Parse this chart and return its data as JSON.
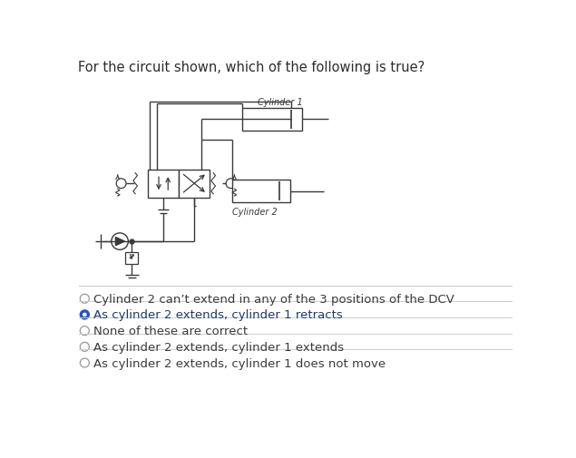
{
  "title": "For the circuit shown, which of the following is true?",
  "title_color": "#2c2c2c",
  "title_fontsize": 10.5,
  "options": [
    "Cylinder 2 can’t extend in any of the 3 positions of the DCV",
    "As cylinder 2 extends, cylinder 1 retracts",
    "None of these are correct",
    "As cylinder 2 extends, cylinder 1 extends",
    "As cylinder 2 extends, cylinder 1 does not move"
  ],
  "selected_option": 1,
  "option_color_normal": "#3a3a3a",
  "option_color_selected": "#1a3a6e",
  "selected_dot_color": "#2255cc",
  "bg_color": "#ffffff",
  "line_color": "#3a3a3a",
  "separator_color": "#cccccc",
  "option_fontsize": 9.5,
  "opt_y_positions": [
    345,
    368,
    391,
    414,
    437
  ]
}
